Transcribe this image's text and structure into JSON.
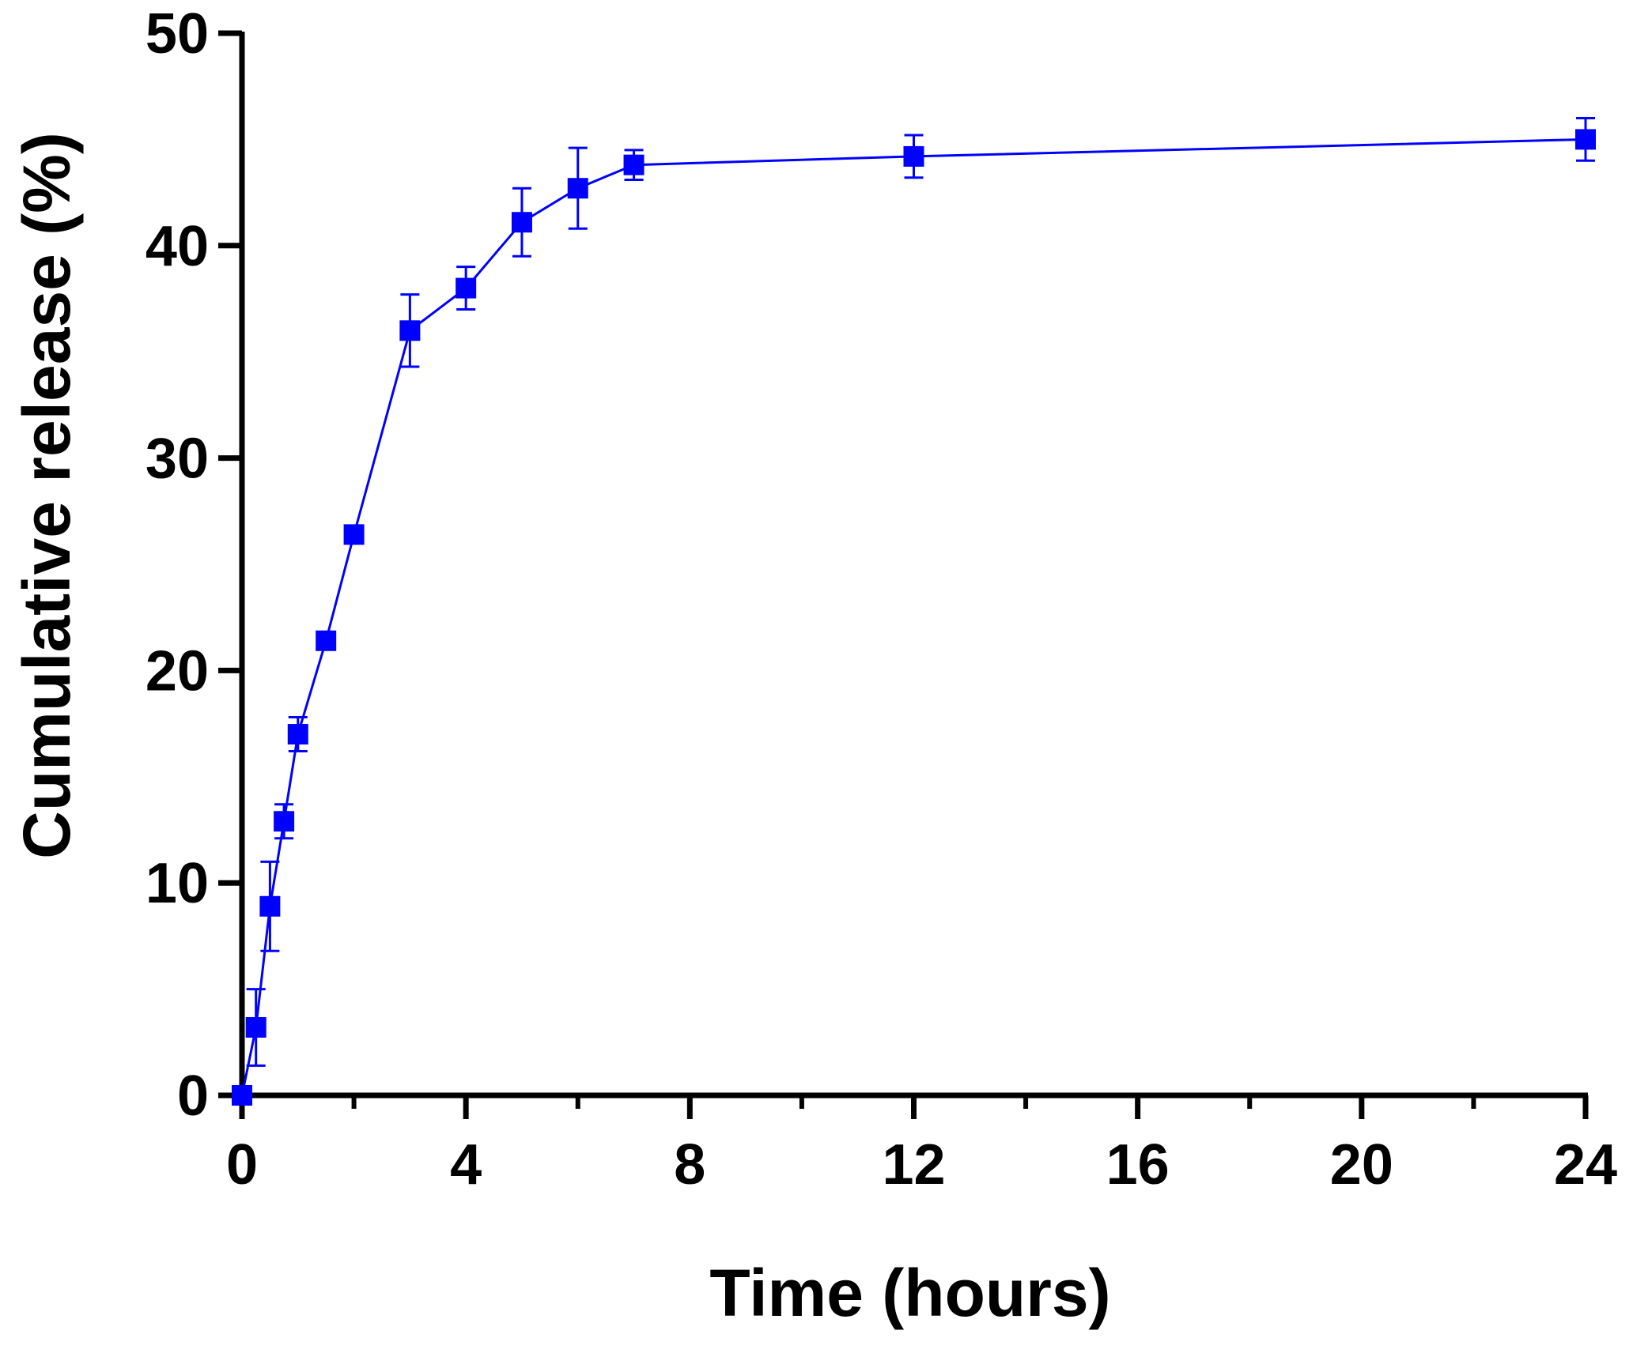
{
  "chart_data": {
    "type": "line",
    "xlabel": "Time (hours)",
    "ylabel": "Cumulative release (%)",
    "xlim": [
      0,
      24
    ],
    "ylim": [
      0,
      50
    ],
    "x_ticks": [
      0,
      4,
      8,
      12,
      16,
      20,
      24
    ],
    "x_minor_ticks": [
      2,
      6,
      10,
      14,
      18,
      22
    ],
    "y_ticks": [
      0,
      10,
      20,
      30,
      40,
      50
    ],
    "grid": false,
    "series": [
      {
        "color": "#0000ff",
        "marker": "square",
        "x": [
          0,
          0.25,
          0.5,
          0.75,
          1,
          1.5,
          2,
          3,
          4,
          5,
          6,
          7,
          12,
          24
        ],
        "y": [
          0,
          3.2,
          8.9,
          12.9,
          17.0,
          21.4,
          26.4,
          36.0,
          38.0,
          41.1,
          42.7,
          43.8,
          44.2,
          45.0
        ],
        "error": [
          0,
          1.8,
          2.1,
          0.8,
          0.8,
          0.4,
          0.3,
          1.7,
          1.0,
          1.6,
          1.9,
          0.7,
          1.0,
          1.0
        ]
      }
    ]
  }
}
